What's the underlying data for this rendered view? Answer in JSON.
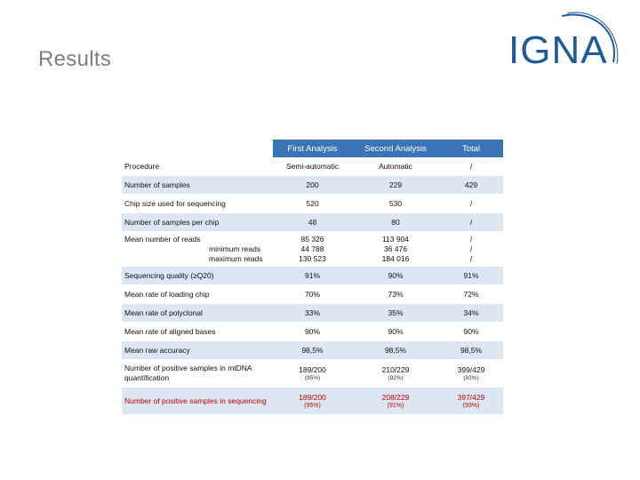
{
  "slide": {
    "title": "Results"
  },
  "logo": {
    "text": "IGNA"
  },
  "table": {
    "headers": [
      "",
      "First Analysis",
      "Second Analysis",
      "Total"
    ],
    "rows": [
      {
        "label": "Procedure",
        "first": "Semi-automatic",
        "second": "Automatic",
        "total": "/"
      },
      {
        "label": "Number of samples",
        "first": "200",
        "second": "229",
        "total": "429"
      },
      {
        "label": "Chip size used for sequencing",
        "first": "520",
        "second": "530",
        "total": "/"
      },
      {
        "label": "Number of samples per chip",
        "first": "48",
        "second": "80",
        "total": "/"
      }
    ],
    "reads": {
      "label": "Mean number of reads",
      "min_label": "minimum reads",
      "max_label": "maximum reads",
      "first": [
        "85 326",
        "44 788",
        "130 523"
      ],
      "second": [
        "113 904",
        "36 476",
        "184 016"
      ],
      "total": [
        "/",
        "/",
        "/"
      ]
    },
    "rows2": [
      {
        "label": "Sequencing quality (≥Q20)",
        "first": "91%",
        "second": "90%",
        "total": "91%"
      },
      {
        "label": "Mean rate of loading chip",
        "first": "70%",
        "second": "73%",
        "total": "72%"
      },
      {
        "label": "Mean rate of polyclonal",
        "first": "33%",
        "second": "35%",
        "total": "34%"
      },
      {
        "label": "Mean rate of aligned bases",
        "first": "90%",
        "second": "90%",
        "total": "90%"
      },
      {
        "label": "Mean raw accuracy",
        "first": "98,5%",
        "second": "98,5%",
        "total": "98,5%"
      }
    ],
    "quant": {
      "label": "Number of positive samples in mtDNA quantification",
      "first": "189/200",
      "first_pct": "(95%)",
      "second": "210/229",
      "second_pct": "(92%)",
      "total": "399/429",
      "total_pct": "(93%)"
    },
    "seq": {
      "label": "Number of positive samples in sequencing",
      "first": "189/200",
      "first_pct": "(95%)",
      "second": "208/229",
      "second_pct": "(91%)",
      "total": "397/429",
      "total_pct": "(93%)"
    }
  }
}
